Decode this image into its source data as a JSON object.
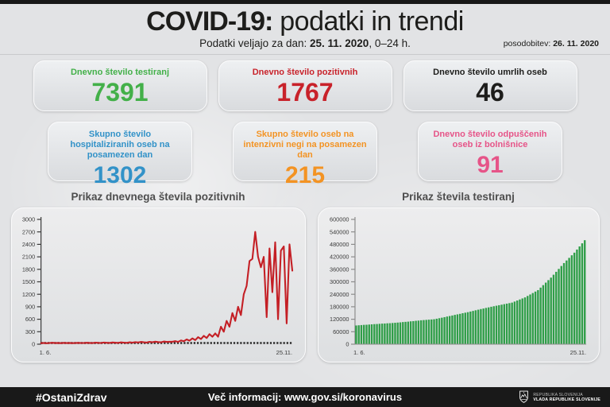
{
  "header": {
    "title_bold": "COVID-19:",
    "title_rest": " podatki in trendi",
    "subtitle_prefix": "Podatki veljajo za dan: ",
    "subtitle_date": "25. 11. 2020",
    "subtitle_suffix": ", 0–24 h.",
    "update_label": "posodobitev: ",
    "update_date": "26. 11. 2020"
  },
  "stats": [
    {
      "label": "Dnevno število testiranj",
      "value": "7391",
      "color": "#43b049"
    },
    {
      "label": "Dnevno število pozitivnih",
      "value": "1767",
      "color": "#c8222a"
    },
    {
      "label": "Dnevno število umrlih oseb",
      "value": "46",
      "color": "#1d1d1b"
    },
    {
      "label": "Skupno število hospitaliziranih oseb na posamezen dan",
      "value": "1302",
      "color": "#3292c8"
    },
    {
      "label": "Skupno število oseb na intenzivni negi na posamezen dan",
      "value": "215",
      "color": "#f39323"
    },
    {
      "label": "Dnevno število odpuščenih oseb iz bolnišnice",
      "value": "91",
      "color": "#e65488"
    }
  ],
  "chart_data": [
    {
      "type": "line",
      "title": "Prikaz dnevnega števila pozitivnih",
      "xlabel": "",
      "ylabel": "",
      "x_start_label": "1. 6.",
      "x_end_label": "25.11.",
      "ylim": [
        0,
        3000
      ],
      "yticks": [
        0,
        300,
        600,
        900,
        1200,
        1500,
        1800,
        2100,
        2400,
        2700,
        3000
      ],
      "grid": false,
      "line_color": "#c41f25",
      "axis_color": "#3a3a3a",
      "baseline_dashed": true,
      "values": [
        25,
        30,
        22,
        28,
        35,
        26,
        30,
        24,
        32,
        27,
        30,
        25,
        28,
        33,
        29,
        28,
        35,
        30,
        26,
        38,
        32,
        28,
        40,
        34,
        30,
        42,
        36,
        31,
        44,
        38,
        33,
        45,
        38,
        50,
        42,
        55,
        46,
        40,
        58,
        48,
        62,
        52,
        45,
        65,
        55,
        60,
        60,
        75,
        55,
        90,
        70,
        115,
        85,
        140,
        100,
        170,
        125,
        200,
        150,
        240,
        180,
        260,
        180,
        420,
        300,
        560,
        420,
        750,
        560,
        900,
        700,
        1200,
        1400,
        2000,
        2050,
        2700,
        2100,
        1850,
        2100,
        650,
        2300,
        1250,
        2450,
        600,
        2250,
        2350,
        500,
        2400,
        1767
      ]
    },
    {
      "type": "bar",
      "title": "Prikaz števila testiranj",
      "xlabel": "",
      "ylabel": "",
      "x_start_label": "1. 6.",
      "x_end_label": "25.11.",
      "ylim": [
        0,
        600000
      ],
      "yticks": [
        0,
        60000,
        120000,
        180000,
        240000,
        300000,
        360000,
        420000,
        480000,
        540000,
        600000
      ],
      "grid": false,
      "bar_color": "#2f9e48",
      "axis_color": "#8c8c8c",
      "baseline_dashed": false,
      "values": [
        90000,
        91000,
        92000,
        93000,
        93500,
        94500,
        95500,
        96500,
        97000,
        98000,
        99000,
        99500,
        100500,
        101000,
        102000,
        103000,
        104000,
        105000,
        106500,
        107500,
        108500,
        110000,
        111000,
        112500,
        113500,
        115000,
        116000,
        117000,
        118000,
        119000,
        120000,
        122500,
        125000,
        127500,
        130000,
        133000,
        135500,
        138000,
        141000,
        143500,
        146000,
        149000,
        151500,
        154000,
        157000,
        160000,
        163000,
        166000,
        169000,
        171500,
        174500,
        177000,
        180000,
        182500,
        185000,
        187500,
        190000,
        192500,
        195000,
        197500,
        200000,
        205000,
        210000,
        215000,
        220000,
        225000,
        232000,
        239000,
        246000,
        253000,
        260000,
        272000,
        284000,
        296000,
        308000,
        320000,
        334000,
        348000,
        362000,
        376000,
        390000,
        402500,
        415000,
        427500,
        440000,
        455000,
        470000,
        485000,
        500000
      ]
    }
  ],
  "footer": {
    "hashtag": "#OstaniZdrav",
    "info": "Več informacij: www.gov.si/koronavirus",
    "gov_line1": "REPUBLIKA SLOVENIJA",
    "gov_line2": "VLADA REPUBLIKE SLOVENIJE"
  }
}
